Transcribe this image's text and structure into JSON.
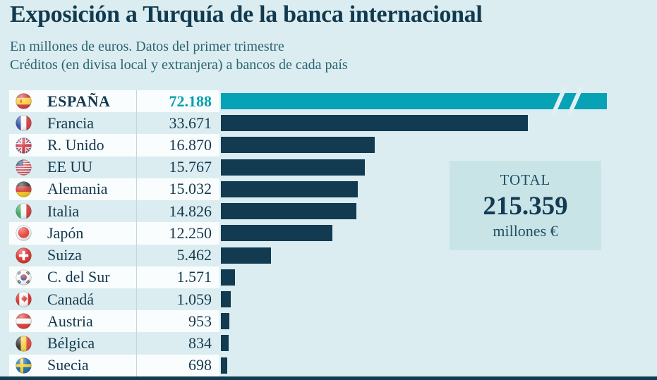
{
  "header": {
    "title": "Exposición a Turquía de la banca internacional",
    "subtitle1": "En millones de euros. Datos del primer trimestre",
    "subtitle2": "Créditos (en divisa local y extranjera) a bancos de cada país"
  },
  "chart_data": {
    "type": "bar",
    "orientation": "horizontal",
    "unit": "millones de euros",
    "categories": [
      "ESPAÑA",
      "Francia",
      "R. Unido",
      "EE UU",
      "Alemania",
      "Italia",
      "Japón",
      "Suiza",
      "C. del Sur",
      "Canadá",
      "Austria",
      "Bélgica",
      "Suecia"
    ],
    "values": [
      72188,
      33671,
      16870,
      15767,
      15032,
      14826,
      12250,
      5462,
      1571,
      1059,
      953,
      834,
      698
    ],
    "value_labels": [
      "72.188",
      "33.671",
      "16.870",
      "15.767",
      "15.032",
      "14.826",
      "12.250",
      "5.462",
      "1.571",
      "1.059",
      "953",
      "834",
      "698"
    ],
    "flags": [
      "spain",
      "france",
      "united-kingdom",
      "usa",
      "germany",
      "italy",
      "japan",
      "switzerland",
      "south-korea",
      "canada",
      "austria",
      "belgium",
      "sweden"
    ],
    "highlight_index": 0,
    "highlight_truncated": true,
    "legend": "none",
    "grid": false
  },
  "total": {
    "label": "TOTAL",
    "value": "215.359",
    "unit": "millones €"
  },
  "colors": {
    "background": "#dbedf0",
    "bar": "#123a50",
    "highlight_bar": "#07a2b6",
    "highlight_value_text": "#089fad",
    "title_text": "#113a50",
    "subtitle_text": "#2c6474",
    "row_alt_background": "#f9fdfd",
    "total_box_background": "#c9e4e7"
  }
}
